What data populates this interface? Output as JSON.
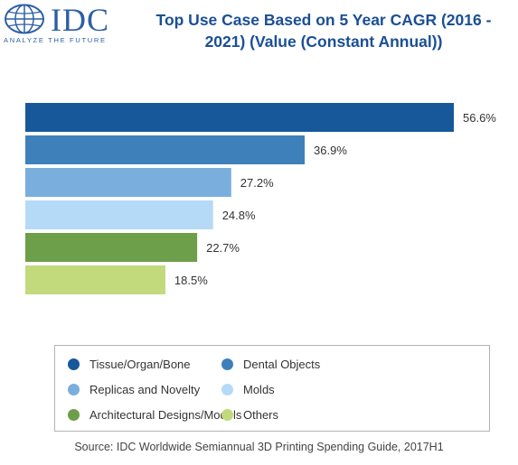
{
  "logo": {
    "text": "IDC",
    "tagline": "ANALYZE THE FUTURE"
  },
  "chart_data": {
    "type": "bar",
    "orientation": "horizontal",
    "title": "Top Use Case Based on 5 Year CAGR (2016 - 2021) (Value (Constant Annual))",
    "categories": [
      "Tissue/Organ/Bone",
      "Dental Objects",
      "Replicas and Novelty",
      "Molds",
      "Architectural Designs/Models",
      "Others"
    ],
    "values": [
      56.6,
      36.9,
      27.2,
      24.8,
      22.7,
      18.5
    ],
    "value_labels": [
      "56.6%",
      "36.9%",
      "27.2%",
      "24.8%",
      "22.7%",
      "18.5%"
    ],
    "colors": [
      "#17589a",
      "#3e80ba",
      "#7aaedc",
      "#b5daf7",
      "#6d9e49",
      "#c2d97c"
    ],
    "xlim": [
      0,
      56.6
    ],
    "grid": false,
    "legend_position": "bottom"
  },
  "source": "Source: IDC Worldwide Semiannual 3D Printing Spending Guide, 2017H1"
}
